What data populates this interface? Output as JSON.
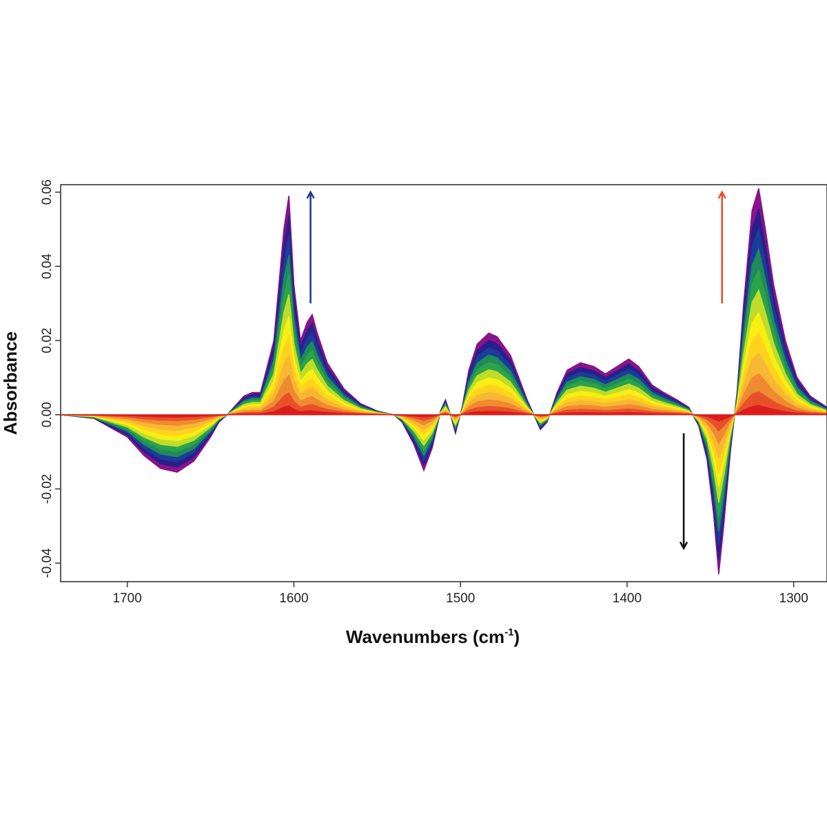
{
  "chart_data": {
    "type": "line",
    "xlabel": "Wavenumbers (cm",
    "xlabel_sup": "-1",
    "xlabel_close": ")",
    "ylabel": "Absorbance",
    "x_reversed": true,
    "xlim": [
      1740,
      1280
    ],
    "ylim": [
      -0.045,
      0.062
    ],
    "x_ticks": [
      1700,
      1600,
      1500,
      1400,
      1300
    ],
    "x_tick_labels": [
      "1700",
      "1600",
      "1500",
      "1400",
      "1300"
    ],
    "y_ticks": [
      0.06,
      0.04,
      0.02,
      0.0,
      -0.02,
      -0.04
    ],
    "y_tick_labels": [
      "0.06",
      "0.04",
      "0.02",
      "0.00",
      "-0.02",
      "-0.04"
    ],
    "grid": false,
    "series_colors": [
      "#e01b1b",
      "#e8502a",
      "#f08a30",
      "#f7b733",
      "#ffd21e",
      "#f7ef12",
      "#bfdc2a",
      "#2aa34a",
      "#1f8a5a",
      "#1b3d99",
      "#2a1f8a",
      "#8a138a"
    ],
    "series_scales": [
      0.04,
      0.1,
      0.18,
      0.27,
      0.36,
      0.45,
      0.55,
      0.64,
      0.73,
      0.82,
      0.91,
      1.0
    ],
    "reference_spectrum": {
      "x": [
        1740,
        1720,
        1700,
        1690,
        1680,
        1670,
        1660,
        1650,
        1645,
        1640,
        1630,
        1625,
        1620,
        1612,
        1606,
        1603,
        1600,
        1596,
        1592,
        1589,
        1586,
        1580,
        1570,
        1560,
        1550,
        1540,
        1535,
        1528,
        1522,
        1517,
        1512,
        1509,
        1506,
        1503,
        1499,
        1495,
        1490,
        1483,
        1478,
        1470,
        1465,
        1460,
        1455,
        1452,
        1448,
        1442,
        1436,
        1428,
        1420,
        1413,
        1406,
        1399,
        1393,
        1385,
        1378,
        1370,
        1363,
        1357,
        1352,
        1348,
        1345,
        1342,
        1338,
        1334,
        1330,
        1325,
        1321,
        1317,
        1312,
        1305,
        1298,
        1290,
        1280
      ],
      "y": [
        0.0,
        -0.001,
        -0.006,
        -0.011,
        -0.0145,
        -0.0155,
        -0.0125,
        -0.006,
        -0.002,
        0.0,
        0.005,
        0.006,
        0.006,
        0.02,
        0.05,
        0.059,
        0.035,
        0.02,
        0.025,
        0.027,
        0.022,
        0.014,
        0.007,
        0.003,
        0.001,
        0.0,
        -0.002,
        -0.008,
        -0.015,
        -0.009,
        0.001,
        0.004,
        0.0,
        -0.005,
        0.002,
        0.012,
        0.019,
        0.022,
        0.021,
        0.016,
        0.01,
        0.004,
        -0.001,
        -0.004,
        -0.002,
        0.006,
        0.012,
        0.014,
        0.013,
        0.011,
        0.013,
        0.015,
        0.013,
        0.008,
        0.006,
        0.004,
        0.002,
        -0.003,
        -0.012,
        -0.027,
        -0.043,
        -0.03,
        -0.01,
        0.006,
        0.03,
        0.055,
        0.061,
        0.05,
        0.035,
        0.02,
        0.01,
        0.005,
        0.002
      ]
    },
    "annotations": [
      {
        "name": "blue-up-arrow",
        "x": 1590,
        "y_from": 0.03,
        "y_to": 0.06,
        "color": "#1b3d99"
      },
      {
        "name": "orange-up-arrow",
        "x": 1343,
        "y_from": 0.03,
        "y_to": 0.06,
        "color": "#e8502a"
      },
      {
        "name": "black-down-arrow",
        "x": 1366,
        "y_from": -0.005,
        "y_to": -0.036,
        "color": "#111111"
      }
    ]
  }
}
